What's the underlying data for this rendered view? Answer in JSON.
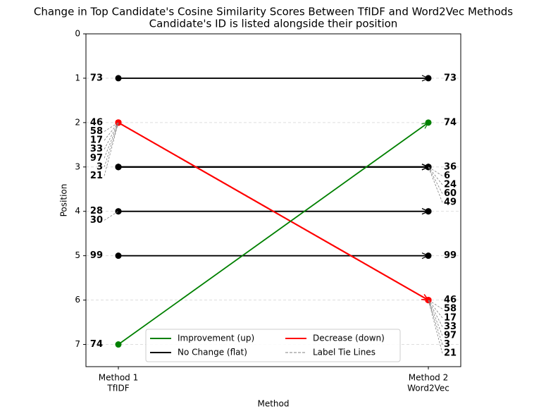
{
  "chart_data": {
    "type": "slope",
    "title": "Change in Top Candidate's Cosine Similarity Scores Between TfIDF and Word2Vec Methods",
    "subtitle": "Candidate's ID is listed alongside their position",
    "xlabel": "Method",
    "ylabel": "Position",
    "categories": [
      [
        "Method 1",
        "TfIDF"
      ],
      [
        "Method 2",
        "Word2Vec"
      ]
    ],
    "ylim": [
      7.5,
      0
    ],
    "yticks": [
      0,
      1,
      2,
      3,
      4,
      5,
      6,
      7
    ],
    "grid": true,
    "legend_position": "lower center",
    "legend": [
      {
        "name": "Improvement (up)",
        "trend": "up",
        "color": "#008000",
        "style": "solid"
      },
      {
        "name": "No Change (flat)",
        "trend": "flat",
        "color": "#000000",
        "style": "solid"
      },
      {
        "name": "Decrease (down)",
        "trend": "down",
        "color": "#ff0000",
        "style": "solid"
      },
      {
        "name": "Label Tie Lines",
        "trend": "tie",
        "color": "#808080",
        "style": "dashed"
      }
    ],
    "candidates": [
      {
        "id": "73",
        "values": [
          1,
          1
        ],
        "show_labels": [
          true,
          true
        ]
      },
      {
        "id": "46",
        "values": [
          2,
          6
        ],
        "show_labels": [
          true,
          true
        ]
      },
      {
        "id": "58",
        "values": [
          2,
          6
        ],
        "show_labels": [
          true,
          true
        ]
      },
      {
        "id": "17",
        "values": [
          2,
          6
        ],
        "show_labels": [
          true,
          true
        ]
      },
      {
        "id": "33",
        "values": [
          2,
          6
        ],
        "show_labels": [
          true,
          true
        ]
      },
      {
        "id": "97",
        "values": [
          2,
          6
        ],
        "show_labels": [
          true,
          true
        ]
      },
      {
        "id": "3",
        "values": [
          2,
          6
        ],
        "show_labels": [
          true,
          true
        ]
      },
      {
        "id": "21",
        "values": [
          2,
          6
        ],
        "show_labels": [
          true,
          true
        ]
      },
      {
        "id": "36",
        "values": [
          3,
          3
        ],
        "show_labels": [
          false,
          true
        ]
      },
      {
        "id": "6",
        "values": [
          3,
          3
        ],
        "show_labels": [
          false,
          true
        ]
      },
      {
        "id": "24",
        "values": [
          3,
          3
        ],
        "show_labels": [
          false,
          true
        ]
      },
      {
        "id": "60",
        "values": [
          3,
          3
        ],
        "show_labels": [
          false,
          true
        ]
      },
      {
        "id": "49",
        "values": [
          3,
          3
        ],
        "show_labels": [
          false,
          true
        ]
      },
      {
        "id": "28",
        "values": [
          4,
          4
        ],
        "show_labels": [
          true,
          false
        ]
      },
      {
        "id": "30",
        "values": [
          4,
          4
        ],
        "show_labels": [
          true,
          false
        ]
      },
      {
        "id": "99",
        "values": [
          5,
          5
        ],
        "show_labels": [
          true,
          true
        ]
      },
      {
        "id": "74",
        "values": [
          7,
          2
        ],
        "show_labels": [
          true,
          true
        ]
      }
    ]
  }
}
